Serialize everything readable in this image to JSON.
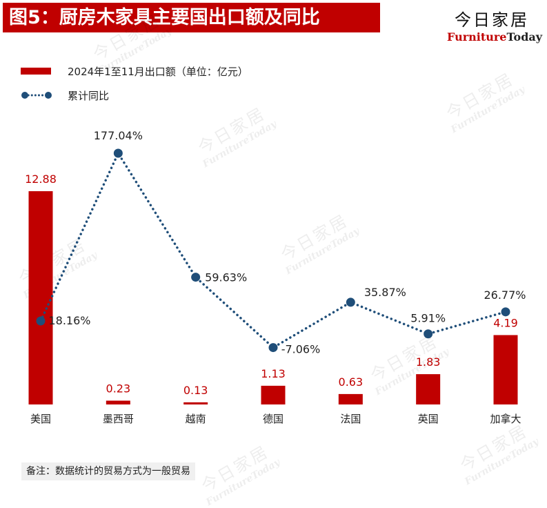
{
  "title": "图5：厨房木家具主要国出口额及同比",
  "logo": {
    "cn": "今日家居",
    "en_red": "Furniture",
    "en_dark": "Today"
  },
  "note": "备注：数据统计的贸易方式为一般贸易",
  "colors": {
    "bar": "#c00000",
    "line": "#1f4e79",
    "bar_label": "#c00000",
    "line_label": "#222222"
  },
  "chart_data": {
    "type": "bar",
    "categories": [
      "美国",
      "墨西哥",
      "越南",
      "德国",
      "法国",
      "英国",
      "加拿大"
    ],
    "series": [
      {
        "name": "2024年1至11月出口额（单位：亿元）",
        "type": "bar",
        "values": [
          12.88,
          0.23,
          0.13,
          1.13,
          0.63,
          1.83,
          4.19
        ],
        "labels": [
          "12.88",
          "0.23",
          "0.13",
          "1.13",
          "0.63",
          "1.83",
          "4.19"
        ]
      },
      {
        "name": "累计同比",
        "type": "line",
        "style": "dotted",
        "unit": "%",
        "values": [
          18.16,
          177.04,
          59.63,
          -7.06,
          35.87,
          5.91,
          26.77
        ],
        "labels": [
          "18.16%",
          "177.04%",
          "59.63%",
          "-7.06%",
          "35.87%",
          "5.91%",
          "26.77%"
        ]
      }
    ],
    "legend_position": "top-left",
    "grid": false
  }
}
